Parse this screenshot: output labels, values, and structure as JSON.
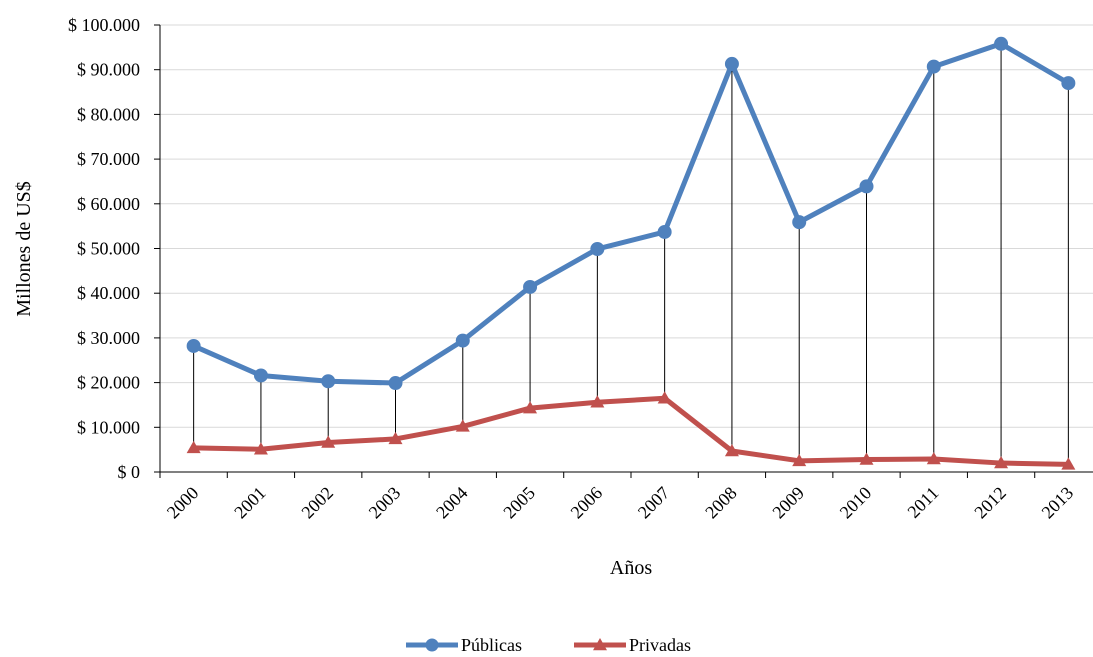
{
  "chart_data": {
    "type": "line",
    "title": "",
    "xlabel": "Años",
    "ylabel": "Millones de US$",
    "categories": [
      "2000",
      "2001",
      "2002",
      "2003",
      "2004",
      "2005",
      "2006",
      "2007",
      "2008",
      "2009",
      "2010",
      "2011",
      "2012",
      "2013"
    ],
    "ylim": [
      0,
      100000
    ],
    "y_ticks": [
      0,
      10000,
      20000,
      30000,
      40000,
      50000,
      60000,
      70000,
      80000,
      90000,
      100000
    ],
    "y_tick_labels": [
      "$ 0",
      "$ 10.000",
      "$ 20.000",
      "$ 30.000",
      "$ 40.000",
      "$ 50.000",
      "$ 60.000",
      "$ 70.000",
      "$ 80.000",
      "$ 90.000",
      "$ 100.000"
    ],
    "grid": true,
    "high_low_lines": true,
    "legend_position": "bottom",
    "series": [
      {
        "name": "Públicas",
        "marker": "circle",
        "color": "#4F81BD",
        "values": [
          28200,
          21600,
          20300,
          19900,
          29400,
          41400,
          49900,
          53700,
          91300,
          55900,
          63900,
          90700,
          95800,
          87000
        ]
      },
      {
        "name": "Privadas",
        "marker": "triangle",
        "color": "#C0504D",
        "values": [
          5400,
          5100,
          6600,
          7400,
          10200,
          14300,
          15600,
          16500,
          4700,
          2500,
          2800,
          2900,
          2000,
          1700
        ]
      }
    ]
  }
}
